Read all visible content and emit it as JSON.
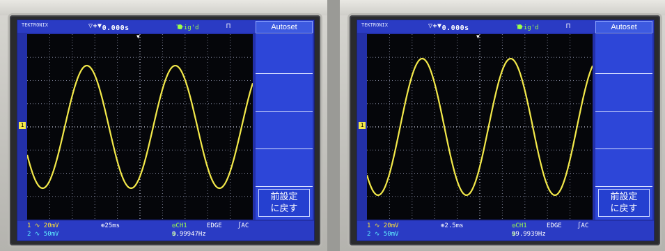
{
  "panels": [
    {
      "id": "left",
      "top": {
        "status": "TEKTRONIX",
        "time_offset": "0.000s",
        "trigger_status": "Trig'd",
        "pulse_glyph": "⊓",
        "autoset_label": "Autoset"
      },
      "softkey": {
        "reset_label_line1": "前設定",
        "reset_label_line2": "に戻す"
      },
      "bottom": {
        "ch1": "1 ∿ 20mV",
        "ch2": "2 ∿ 50mV",
        "timebase": "25ms",
        "trig_source": "CH1",
        "trig_type": "EDGE",
        "coupling": "∫AC",
        "frequency": "9.99947Hz"
      }
    },
    {
      "id": "right",
      "top": {
        "status": "TEKTRONIX",
        "time_offset": "0.000s",
        "trigger_status": "Trig'd",
        "pulse_glyph": "⊓",
        "autoset_label": "Autoset"
      },
      "softkey": {
        "reset_label_line1": "前設定",
        "reset_label_line2": "に戻す"
      },
      "bottom": {
        "ch1": "1 ∿ 20mV",
        "ch2": "2 ∿ 50mV",
        "timebase": "2.5ms",
        "trig_source": "CH1",
        "trig_type": "EDGE",
        "coupling": "∫AC",
        "frequency": "99.9939Hz"
      }
    }
  ],
  "colors": {
    "trace": "#f3e94a",
    "screen_bg": "#2330a8",
    "grid_bg": "#05060a"
  }
}
